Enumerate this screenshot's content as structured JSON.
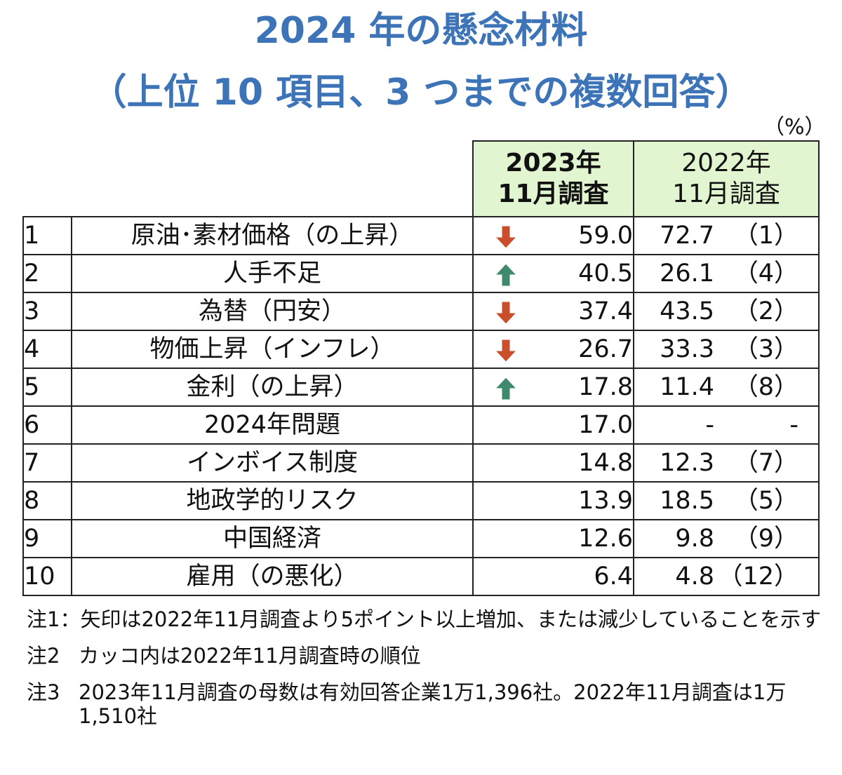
{
  "title_line1": "2024 年の懸念材料",
  "title_line2": "（上位 10 項目、3 つまでの複数回答）",
  "unit": "（%）",
  "colors": {
    "title": "#3d74b8",
    "header_bg": "#e2f5d1",
    "arrow_up": "#3f8a6c",
    "arrow_down": "#c84e2c"
  },
  "headers": {
    "col_2023_line1": "2023年",
    "col_2023_line2": "11月調査",
    "col_2022_line1": "2022年",
    "col_2022_line2": "11月調査"
  },
  "chart_data": {
    "type": "table",
    "title": "2024 年の懸念材料",
    "subtitle": "（上位 10 項目、3 つまでの複数回答）",
    "unit": "（%）",
    "columns": [
      "2023年11月調査",
      "2022年11月調査"
    ],
    "rows": [
      {
        "rank": "1",
        "item": "原油･素材価格（の上昇）",
        "trend": "down",
        "trend_icon": "arrow-down-icon",
        "v2023": "59.0",
        "v2022": "72.7",
        "rank2022": "（1）"
      },
      {
        "rank": "2",
        "item": "人手不足",
        "trend": "up",
        "trend_icon": "arrow-up-icon",
        "v2023": "40.5",
        "v2022": "26.1",
        "rank2022": "（4）"
      },
      {
        "rank": "3",
        "item": "為替（円安）",
        "trend": "down",
        "trend_icon": "arrow-down-icon",
        "v2023": "37.4",
        "v2022": "43.5",
        "rank2022": "（2）"
      },
      {
        "rank": "4",
        "item": "物価上昇（インフレ）",
        "trend": "down",
        "trend_icon": "arrow-down-icon",
        "v2023": "26.7",
        "v2022": "33.3",
        "rank2022": "（3）"
      },
      {
        "rank": "5",
        "item": "金利（の上昇）",
        "trend": "up",
        "trend_icon": "arrow-up-icon",
        "v2023": "17.8",
        "v2022": "11.4",
        "rank2022": "（8）"
      },
      {
        "rank": "6",
        "item": "2024年問題",
        "trend": "",
        "trend_icon": "",
        "v2023": "17.0",
        "v2022": "-",
        "rank2022": "-"
      },
      {
        "rank": "7",
        "item": "インボイス制度",
        "trend": "",
        "trend_icon": "",
        "v2023": "14.8",
        "v2022": "12.3",
        "rank2022": "（7）"
      },
      {
        "rank": "8",
        "item": "地政学的リスク",
        "trend": "",
        "trend_icon": "",
        "v2023": "13.9",
        "v2022": "18.5",
        "rank2022": "（5）"
      },
      {
        "rank": "9",
        "item": "中国経済",
        "trend": "",
        "trend_icon": "",
        "v2023": "12.6",
        "v2022": "9.8",
        "rank2022": "（9）"
      },
      {
        "rank": "10",
        "item": "雇用（の悪化）",
        "trend": "",
        "trend_icon": "",
        "v2023": "6.4",
        "v2022": "4.8",
        "rank2022": "（12）"
      }
    ]
  },
  "notes": [
    {
      "label": "注1：",
      "text": "矢印は2022年11月調査より5ポイント以上増加、または減少していることを示す"
    },
    {
      "label": "注2",
      "text": "カッコ内は2022年11月調査時の順位"
    },
    {
      "label": "注3",
      "text": "2023年11月調査の母数は有効回答企業1万1,396社。2022年11月調査は1万1,510社"
    }
  ]
}
